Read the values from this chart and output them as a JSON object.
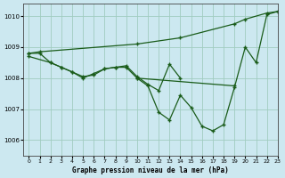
{
  "title": "Graphe pression niveau de la mer (hPa)",
  "bg_color": "#cce8f0",
  "grid_color": "#a0ccc0",
  "line_color": "#1a5c1a",
  "xlim": [
    -0.5,
    23
  ],
  "ylim": [
    1005.5,
    1010.4
  ],
  "yticks": [
    1006,
    1007,
    1008,
    1009,
    1010
  ],
  "xticks": [
    0,
    1,
    2,
    3,
    4,
    5,
    6,
    7,
    8,
    9,
    10,
    11,
    12,
    13,
    14,
    15,
    16,
    17,
    18,
    19,
    20,
    21,
    22,
    23
  ],
  "series": [
    {
      "x": [
        0,
        1,
        10,
        14,
        19,
        20,
        22,
        23
      ],
      "y": [
        1008.8,
        1008.85,
        1009.1,
        1009.3,
        1009.75,
        1009.9,
        1010.1,
        1010.15
      ]
    },
    {
      "x": [
        0,
        1,
        2,
        3,
        4,
        5,
        6,
        7,
        8,
        9,
        10,
        19
      ],
      "y": [
        1008.8,
        1008.8,
        1008.5,
        1008.35,
        1008.2,
        1008.0,
        1008.15,
        1008.3,
        1008.35,
        1008.35,
        1008.0,
        1007.75
      ]
    },
    {
      "x": [
        0,
        2,
        3,
        4,
        5,
        6,
        7,
        8,
        9,
        10,
        11,
        12,
        13,
        14
      ],
      "y": [
        1008.7,
        1008.5,
        1008.35,
        1008.2,
        1008.05,
        1008.1,
        1008.3,
        1008.35,
        1008.4,
        1008.05,
        1007.8,
        1007.6,
        1008.45,
        1008.0
      ]
    },
    {
      "x": [
        10,
        11,
        12,
        13,
        14,
        15,
        16,
        17,
        18,
        19,
        20,
        21,
        22,
        23
      ],
      "y": [
        1008.0,
        1007.75,
        1006.9,
        1006.65,
        1007.45,
        1007.05,
        1006.45,
        1006.3,
        1006.5,
        1007.7,
        1009.0,
        1008.5,
        1010.05,
        1010.15
      ]
    }
  ]
}
